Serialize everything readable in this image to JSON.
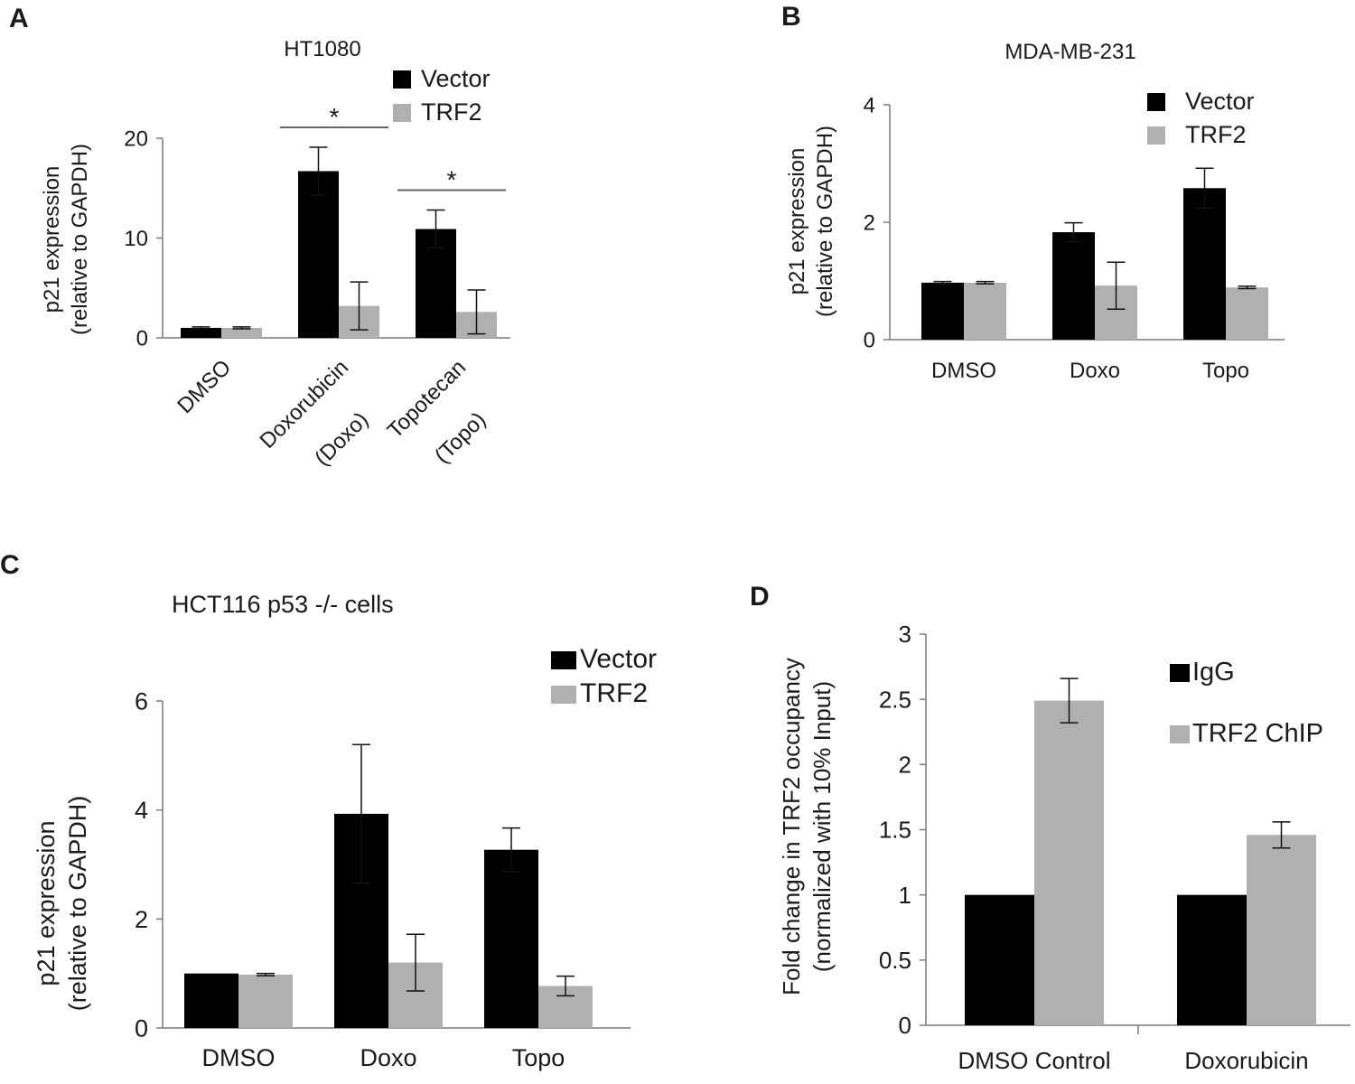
{
  "colors": {
    "vector": "#000000",
    "trf2": "#b0b0b0",
    "igg": "#000000",
    "chip": "#b0b0b0",
    "axis": "#7a7a7a",
    "sig": "#666666"
  },
  "chart_data": [
    {
      "panel": "A",
      "type": "bar",
      "title": "HT1080",
      "ylabel": "p21 expression\n(relative to GAPDH)",
      "ylim": [
        0,
        20
      ],
      "yticks": [
        0,
        10,
        20
      ],
      "categories": [
        "DMSO",
        "Doxorubicin\n(Doxo)",
        "Topotecan\n(Topo)"
      ],
      "rotate_labels": true,
      "series": [
        {
          "name": "Vector",
          "values": [
            1.0,
            16.7,
            10.9
          ],
          "errors": [
            0.1,
            2.4,
            1.9
          ]
        },
        {
          "name": "TRF2",
          "values": [
            1.0,
            3.2,
            2.6
          ],
          "errors": [
            0.1,
            2.4,
            2.2
          ]
        }
      ],
      "significance": [
        {
          "category": 1,
          "label": "*"
        },
        {
          "category": 2,
          "label": "*"
        }
      ]
    },
    {
      "panel": "B",
      "type": "bar",
      "title": "MDA-MB-231",
      "ylabel": "p21 expression\n(relative to GAPDH)",
      "ylim": [
        0,
        4
      ],
      "yticks": [
        0,
        2,
        4
      ],
      "categories": [
        "DMSO",
        "Doxo",
        "Topo"
      ],
      "series": [
        {
          "name": "Vector",
          "values": [
            0.97,
            1.83,
            2.58
          ],
          "errors": [
            0.02,
            0.16,
            0.34
          ]
        },
        {
          "name": "TRF2",
          "values": [
            0.97,
            0.92,
            0.89
          ],
          "errors": [
            0.02,
            0.4,
            0.02
          ]
        }
      ]
    },
    {
      "panel": "C",
      "type": "bar",
      "title": "HCT116  p53 -/- cells",
      "ylabel": "p21 expression\n(relative to GAPDH)",
      "ylim": [
        0,
        6
      ],
      "yticks": [
        0,
        2,
        4,
        6
      ],
      "categories": [
        "DMSO",
        "Doxo",
        "Topo"
      ],
      "series": [
        {
          "name": "Vector",
          "values": [
            1.0,
            3.93,
            3.27
          ],
          "errors": [
            0.0,
            1.27,
            0.4
          ]
        },
        {
          "name": "TRF2",
          "values": [
            0.98,
            1.2,
            0.77
          ],
          "errors": [
            0.02,
            0.52,
            0.18
          ]
        }
      ]
    },
    {
      "panel": "D",
      "type": "bar",
      "title": "",
      "ylabel": "Fold change in TRF2 occupancy\n(normalized with 10% Input)",
      "ylim": [
        0,
        3
      ],
      "yticks": [
        "0",
        "0.5",
        "1",
        "1.5",
        "2",
        "2.5",
        "3"
      ],
      "categories": [
        "DMSO Control",
        "Doxorubicin"
      ],
      "series": [
        {
          "name": "IgG",
          "values": [
            1.0,
            1.0
          ],
          "errors": [
            0.01,
            0.01
          ]
        },
        {
          "name": "TRF2 ChIP",
          "values": [
            2.49,
            1.46
          ],
          "errors": [
            0.17,
            0.1
          ]
        }
      ]
    }
  ]
}
